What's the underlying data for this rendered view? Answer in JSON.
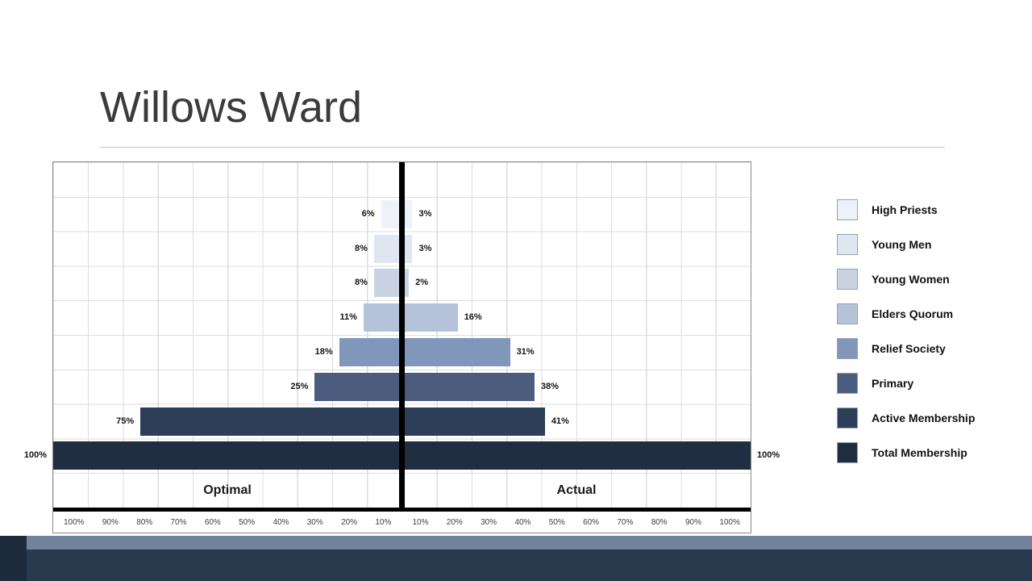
{
  "slide": {
    "title": "Willows Ward"
  },
  "chart_data": {
    "type": "bar",
    "variant": "butterfly-tornado",
    "title": "",
    "categories": [
      "High Priests",
      "Young Men",
      "Young Women",
      "Elders Quorum",
      "Relief Society",
      "Primary",
      "Active Membership",
      "Total Membership"
    ],
    "series": [
      {
        "name": "Optimal",
        "side": "left",
        "values": [
          6,
          8,
          8,
          11,
          18,
          25,
          75,
          100
        ]
      },
      {
        "name": "Actual",
        "side": "right",
        "values": [
          3,
          3,
          2,
          16,
          31,
          38,
          41,
          100
        ]
      }
    ],
    "value_label_suffix": "%",
    "bar_colors": [
      "#eef2f8",
      "#dfe6f1",
      "#c9d3e3",
      "#b4c3d9",
      "#8096ba",
      "#4c5c7e",
      "#2d3f58",
      "#212e41"
    ],
    "side_labels": {
      "left": "Optimal",
      "right": "Actual"
    },
    "x_ticks_left": [
      "100%",
      "90%",
      "80%",
      "70%",
      "60%",
      "50%",
      "40%",
      "30%",
      "20%",
      "10%"
    ],
    "x_ticks_right": [
      "10%",
      "20%",
      "30%",
      "40%",
      "50%",
      "60%",
      "70%",
      "80%",
      "90%",
      "100%"
    ],
    "axis_range_each_side": [
      0,
      100
    ],
    "grid": true,
    "legend_position": "right"
  }
}
